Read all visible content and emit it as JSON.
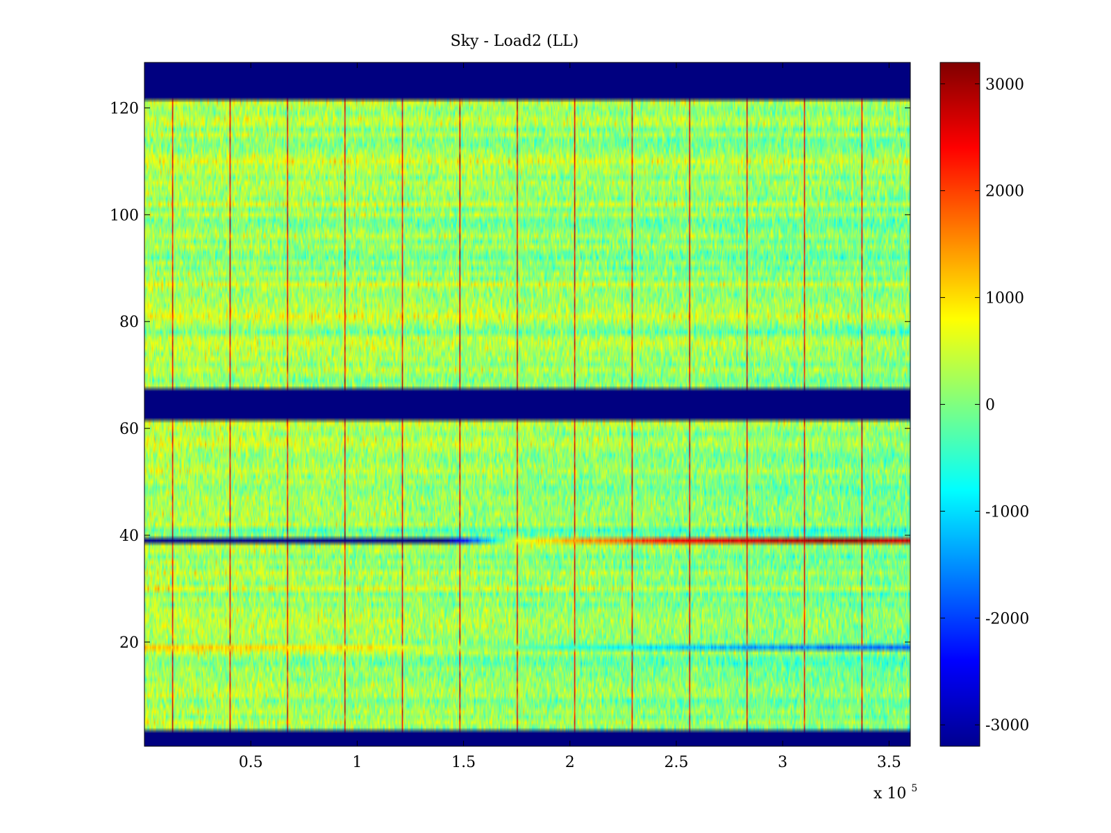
{
  "chart_data": {
    "type": "heatmap",
    "title": "Sky - Load2 (LL)",
    "xlabel": "",
    "ylabel": "",
    "x_multiplier_label": "x 10",
    "x_multiplier_exponent": "5",
    "xlim": [
      0,
      360000
    ],
    "ylim": [
      0.5,
      128.5
    ],
    "x_ticks": [
      50000,
      100000,
      150000,
      200000,
      250000,
      300000,
      350000
    ],
    "x_tick_labels": [
      "0.5",
      "1",
      "1.5",
      "2",
      "2.5",
      "3",
      "3.5"
    ],
    "y_ticks": [
      20,
      40,
      60,
      80,
      100,
      120
    ],
    "y_tick_labels": [
      "20",
      "40",
      "60",
      "80",
      "100",
      "120"
    ],
    "colormap": "jet",
    "clim": [
      -3200,
      3200
    ],
    "colorbar_ticks": [
      3000,
      2000,
      1000,
      0,
      -1000,
      -2000,
      -3000
    ],
    "colorbar_tick_labels": [
      "3000",
      "2000",
      "1000",
      "0",
      "-1000",
      "-2000",
      "-3000"
    ],
    "masked_channel_ranges": [
      [
        122,
        128
      ],
      [
        62,
        67
      ],
      [
        1,
        3
      ]
    ],
    "masked_value": -3200,
    "spike_columns_x": [
      13000,
      40000,
      67000,
      94000,
      121000,
      148000,
      175000,
      202000,
      229000,
      256000,
      283000,
      310000,
      337000
    ],
    "spike_value": 2500,
    "background_mean": 300,
    "background_noise": 450,
    "row_39_profile": {
      "row": 39,
      "x": [
        0,
        140000,
        160000,
        175000,
        200000,
        250000,
        300000,
        330000,
        360000
      ],
      "values": [
        -3200,
        -3200,
        -1300,
        600,
        1300,
        2400,
        2800,
        3100,
        2600
      ]
    },
    "row_19_profile": {
      "row": 19,
      "x": [
        0,
        100000,
        200000,
        300000,
        360000
      ],
      "values": [
        1100,
        900,
        -500,
        -1500,
        -1700
      ]
    }
  }
}
